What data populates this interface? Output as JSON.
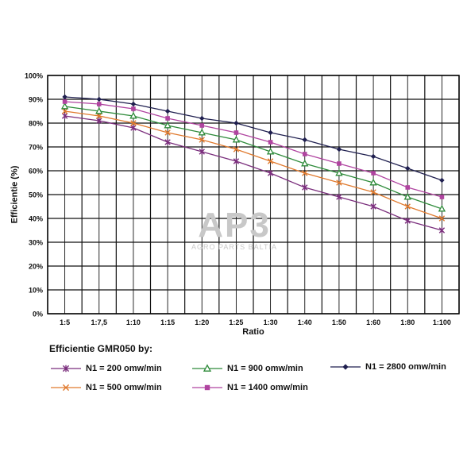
{
  "chart_data": {
    "type": "line",
    "xlabel": "Ratio",
    "ylabel": "Efficientie (%)",
    "categories": [
      "1:5",
      "1:7,5",
      "1:10",
      "1:15",
      "1:20",
      "1:25",
      "1:30",
      "1:40",
      "1:50",
      "1:60",
      "1:80",
      "1:100"
    ],
    "yticks": [
      "0%",
      "10%",
      "20%",
      "30%",
      "40%",
      "50%",
      "60%",
      "70%",
      "80%",
      "90%",
      "100%"
    ],
    "ylim": [
      0,
      100
    ],
    "grid": true,
    "legend_title": "Efficientie GMR050 by:",
    "series": [
      {
        "name": "N1 = 200 omw/min",
        "marker": "asterisk",
        "color": "#7b2f7d",
        "values": [
          83,
          81,
          78,
          72,
          68,
          64,
          59,
          53,
          49,
          45,
          39,
          35
        ]
      },
      {
        "name": "N1 = 500 omw/min",
        "marker": "x",
        "color": "#e07a2e",
        "values": [
          85,
          83,
          80,
          76,
          73,
          69,
          64,
          59,
          55,
          51,
          45,
          40
        ]
      },
      {
        "name": "N1 = 900 omw/min",
        "marker": "triangle",
        "color": "#2e8b3a",
        "values": [
          87,
          85,
          83,
          79,
          76,
          73,
          68,
          63,
          59,
          55,
          49,
          44
        ]
      },
      {
        "name": "N1 = 1400 omw/min",
        "marker": "square",
        "color": "#b044a0",
        "values": [
          89,
          88,
          86,
          82,
          79,
          76,
          72,
          67,
          63,
          59,
          53,
          49
        ]
      },
      {
        "name": "N1 = 2800 omw/min",
        "marker": "diamond",
        "color": "#1f1f4f",
        "values": [
          91,
          90,
          88,
          85,
          82,
          80,
          76,
          73,
          69,
          66,
          61,
          56
        ]
      }
    ]
  },
  "watermark": {
    "logo": "AP3",
    "text": "AGRO PARTS BALTIA"
  }
}
